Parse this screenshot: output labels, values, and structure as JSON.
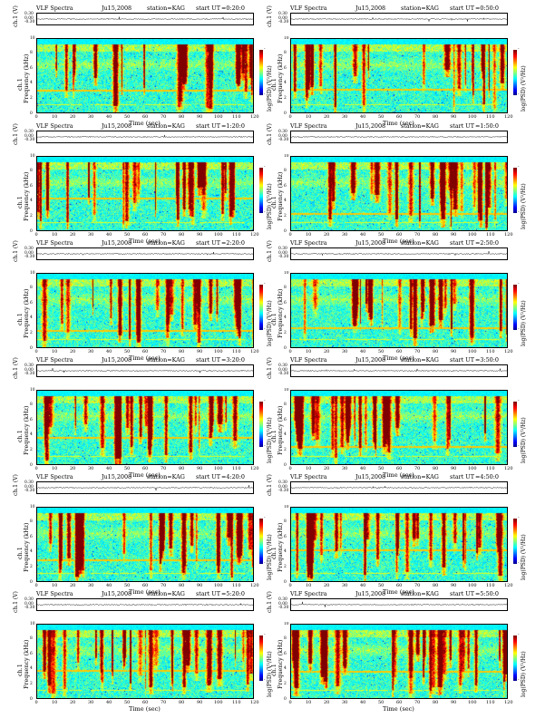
{
  "common": {
    "title": "VLF Spectra",
    "station": "station=KAG",
    "start_label": "start UT",
    "channel_label": "ch.1 (V)",
    "freq_axis_label": "ch.1\nFrequency (kHz)",
    "colorbar_label": "log(PSD) (V²/Hz)",
    "x_label": "Time (sec)",
    "waveform_ticks": [
      "0.30",
      "0.00",
      "-0.30"
    ]
  },
  "chart_data": [
    {
      "type": "heatmap",
      "date": "Ju15,2008",
      "start_time": "=0:20:0",
      "x_range": [
        0,
        120
      ],
      "y_range": [
        0,
        10
      ],
      "x_ticks": [
        0,
        10,
        20,
        30,
        40,
        50,
        60,
        70,
        80,
        90,
        100,
        110,
        120
      ],
      "y_ticks": [
        0,
        2,
        4,
        6,
        8,
        10
      ],
      "xlabel": "Time (sec)",
      "ylabel": "Frequency (kHz)"
    },
    {
      "type": "heatmap",
      "date": "Ju15,2008",
      "start_time": "=0:50:0",
      "x_range": [
        0,
        120
      ],
      "y_range": [
        0,
        10
      ],
      "x_ticks": [
        0,
        10,
        20,
        30,
        40,
        50,
        60,
        70,
        80,
        90,
        100,
        110,
        120
      ],
      "y_ticks": [
        0,
        2,
        4,
        6,
        8,
        10
      ],
      "xlabel": "Time (sec)",
      "ylabel": "Frequency (kHz)"
    },
    {
      "type": "heatmap",
      "date": "Ju15,2008",
      "start_time": "=1:20:0",
      "x_range": [
        0,
        120
      ],
      "y_range": [
        0,
        10
      ],
      "x_ticks": [
        0,
        10,
        20,
        30,
        40,
        50,
        60,
        70,
        80,
        90,
        100,
        110,
        120
      ],
      "y_ticks": [
        0,
        2,
        4,
        6,
        8,
        10
      ],
      "xlabel": "Time (sec)",
      "ylabel": "Frequency (kHz)"
    },
    {
      "type": "heatmap",
      "date": "Ju15,2008",
      "start_time": "=1:50:0",
      "x_range": [
        0,
        120
      ],
      "y_range": [
        0,
        10
      ],
      "x_ticks": [
        0,
        10,
        20,
        30,
        40,
        50,
        60,
        70,
        80,
        90,
        100,
        110,
        120
      ],
      "y_ticks": [
        0,
        2,
        4,
        6,
        8,
        10
      ],
      "xlabel": "Time (sec)",
      "ylabel": "Frequency (kHz)"
    },
    {
      "type": "heatmap",
      "date": "Ju15,2008",
      "start_time": "=2:20:0",
      "x_range": [
        0,
        120
      ],
      "y_range": [
        0,
        10
      ],
      "x_ticks": [
        0,
        10,
        20,
        30,
        40,
        50,
        60,
        70,
        80,
        90,
        100,
        110,
        120
      ],
      "y_ticks": [
        0,
        2,
        4,
        6,
        8,
        10
      ],
      "xlabel": "Time (sec)",
      "ylabel": "Frequency (kHz)"
    },
    {
      "type": "heatmap",
      "date": "Ju15,2008",
      "start_time": "=2:50:0",
      "x_range": [
        0,
        120
      ],
      "y_range": [
        0,
        10
      ],
      "x_ticks": [
        0,
        10,
        20,
        30,
        40,
        50,
        60,
        70,
        80,
        90,
        100,
        110,
        120
      ],
      "y_ticks": [
        0,
        2,
        4,
        6,
        8,
        10
      ],
      "xlabel": "Time (sec)",
      "ylabel": "Frequency (kHz)"
    },
    {
      "type": "heatmap",
      "date": "Ju15,2008",
      "start_time": "=3:20:0",
      "x_range": [
        0,
        120
      ],
      "y_range": [
        0,
        10
      ],
      "x_ticks": [
        0,
        10,
        20,
        30,
        40,
        50,
        60,
        70,
        80,
        90,
        100,
        110,
        120
      ],
      "y_ticks": [
        0,
        2,
        4,
        6,
        8,
        10
      ],
      "xlabel": "Time (sec)",
      "ylabel": "Frequency (kHz)"
    },
    {
      "type": "heatmap",
      "date": "Ju15,2008",
      "start_time": "=3:50:0",
      "x_range": [
        0,
        120
      ],
      "y_range": [
        0,
        10
      ],
      "x_ticks": [
        0,
        10,
        20,
        30,
        40,
        50,
        60,
        70,
        80,
        90,
        100,
        110,
        120
      ],
      "y_ticks": [
        0,
        2,
        4,
        6,
        8,
        10
      ],
      "xlabel": "Time (sec)",
      "ylabel": "Frequency (kHz)"
    },
    {
      "type": "heatmap",
      "date": "Ju15,2008",
      "start_time": "=4:20:0",
      "x_range": [
        0,
        120
      ],
      "y_range": [
        0,
        10
      ],
      "x_ticks": [
        0,
        10,
        20,
        30,
        40,
        50,
        60,
        70,
        80,
        90,
        100,
        110,
        120
      ],
      "y_ticks": [
        0,
        2,
        4,
        6,
        8,
        10
      ],
      "xlabel": "Time (sec)",
      "ylabel": "Frequency (kHz)"
    },
    {
      "type": "heatmap",
      "date": "Ju15,2008",
      "start_time": "=4:50:0",
      "x_range": [
        0,
        120
      ],
      "y_range": [
        0,
        10
      ],
      "x_ticks": [
        0,
        10,
        20,
        30,
        40,
        50,
        60,
        70,
        80,
        90,
        100,
        110,
        120
      ],
      "y_ticks": [
        0,
        2,
        4,
        6,
        8,
        10
      ],
      "xlabel": "Time (sec)",
      "ylabel": "Frequency (kHz)"
    },
    {
      "type": "heatmap",
      "date": "Ju15,2008",
      "start_time": "=5:20:0",
      "x_range": [
        0,
        120
      ],
      "y_range": [
        0,
        10
      ],
      "x_ticks": [
        0,
        10,
        20,
        30,
        40,
        50,
        60,
        70,
        80,
        90,
        100,
        110,
        120
      ],
      "y_ticks": [
        0,
        2,
        4,
        6,
        8,
        10
      ],
      "xlabel": "Time (sec)",
      "ylabel": "Frequency (kHz)"
    },
    {
      "type": "heatmap",
      "date": "Ju15,2008",
      "start_time": "=5:50:0",
      "x_range": [
        0,
        120
      ],
      "y_range": [
        0,
        10
      ],
      "x_ticks": [
        0,
        10,
        20,
        30,
        40,
        50,
        60,
        70,
        80,
        90,
        100,
        110,
        120
      ],
      "y_ticks": [
        0,
        2,
        4,
        6,
        8,
        10
      ],
      "xlabel": "Time (sec)",
      "ylabel": "Frequency (kHz)"
    }
  ]
}
